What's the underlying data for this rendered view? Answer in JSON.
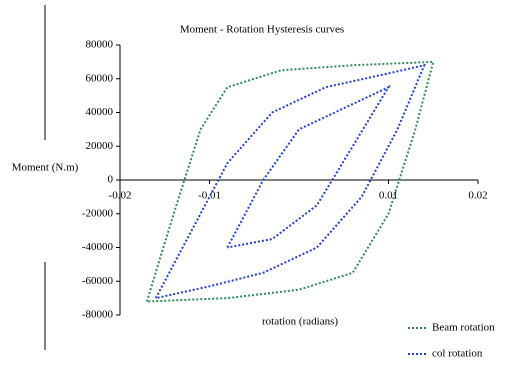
{
  "chart_data": {
    "type": "line",
    "title": "Moment - Rotation Hysteresis curves",
    "ylabel": "Moment (N.m)",
    "xlabel": "rotation (radians)",
    "xlim": [
      -0.02,
      0.02
    ],
    "ylim": [
      -80000,
      80000
    ],
    "xticks": [
      -0.02,
      -0.01,
      0.01,
      0.02
    ],
    "yticks": [
      -80000,
      -60000,
      -40000,
      -20000,
      0,
      20000,
      40000,
      60000,
      80000
    ],
    "series": [
      {
        "name": "Beam rotation",
        "color": "#2e8b57",
        "x": [
          -0.017,
          -0.014,
          -0.011,
          -0.008,
          -0.002,
          0.006,
          0.015,
          0.013,
          0.01,
          0.006,
          0.0,
          -0.008,
          -0.017
        ],
        "values": [
          -72000,
          -20000,
          30000,
          55000,
          65000,
          68000,
          70000,
          30000,
          -20000,
          -55000,
          -65000,
          -70000,
          -72000
        ]
      },
      {
        "name": "col rotation",
        "color": "#1f3fd6",
        "x": [
          -0.016,
          -0.012,
          -0.008,
          -0.003,
          0.003,
          0.009,
          0.014,
          0.011,
          0.007,
          0.002,
          -0.004,
          -0.01,
          -0.016,
          null,
          -0.008,
          -0.004,
          0.0,
          0.006,
          0.01,
          0.006,
          0.002,
          -0.003,
          -0.008
        ],
        "values": [
          -70000,
          -30000,
          10000,
          40000,
          55000,
          62000,
          68000,
          30000,
          -10000,
          -40000,
          -55000,
          -63000,
          -70000,
          null,
          -40000,
          0,
          30000,
          45000,
          55000,
          20000,
          -15000,
          -35000,
          -40000
        ]
      }
    ]
  }
}
